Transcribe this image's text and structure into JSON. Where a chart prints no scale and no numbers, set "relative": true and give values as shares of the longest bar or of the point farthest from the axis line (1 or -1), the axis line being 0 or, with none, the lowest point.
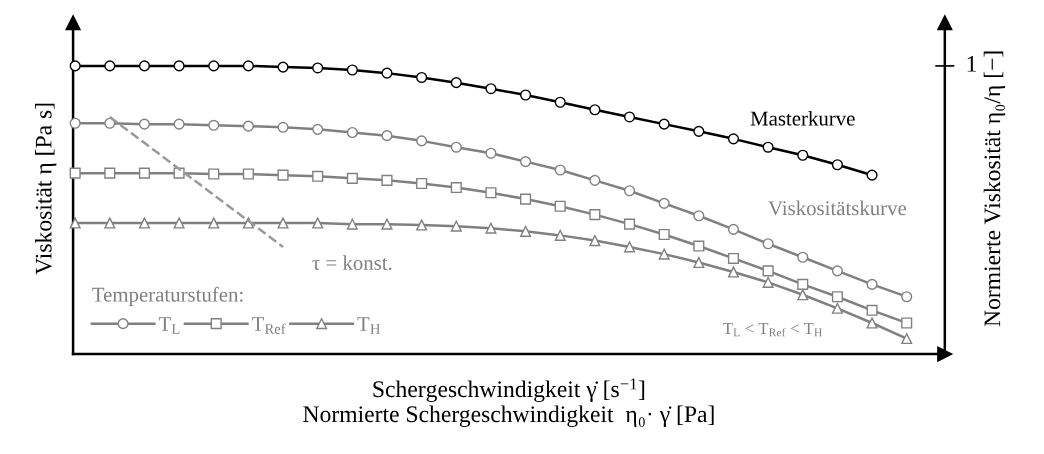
{
  "chart_data": {
    "type": "line",
    "relative": true,
    "xlabel": "Schergeschwindigkeit γ̇ [s$^{−1}$]\nNormierte Schergeschwindigkeit  η₀· γ̇ [Pa]",
    "ylabel": "Viskosität η [Pa s]",
    "y2label": "Normierte Viskosität η₀/η [−]",
    "legend_title": "Temperaturstufen:",
    "legend": "bottom left",
    "tick_labels": "y2",
    "grid": false,
    "categories": [
      null,
      null,
      null,
      null,
      null,
      null,
      null,
      null,
      null,
      null,
      null,
      null,
      null,
      null,
      null,
      null,
      null,
      null,
      null,
      null,
      null,
      null,
      null,
      null,
      null
    ],
    "series": [
      {
        "name": "Masterkurve",
        "color": "#000000",
        "marker": "circle",
        "values": [
          1.0,
          1.0,
          1.0,
          1.0,
          1.0,
          1.0,
          0.996,
          0.993,
          0.986,
          0.975,
          0.96,
          0.942,
          0.921,
          0.899,
          0.874,
          0.848,
          0.823,
          0.798,
          0.773,
          0.747,
          0.718,
          0.69,
          0.657,
          0.621,
          null
        ]
      },
      {
        "name": "T$_{L}$",
        "color": "#808080",
        "marker": "circle",
        "values": [
          0.801,
          0.801,
          0.798,
          0.798,
          0.794,
          0.791,
          0.787,
          0.78,
          0.769,
          0.758,
          0.74,
          0.718,
          0.697,
          0.668,
          0.639,
          0.603,
          0.567,
          0.523,
          0.48,
          0.433,
          0.383,
          0.336,
          0.289,
          0.242,
          0.199
        ]
      },
      {
        "name": "T$_{Ref}$",
        "color": "#808080",
        "marker": "square",
        "values": [
          0.628,
          0.628,
          0.628,
          0.628,
          0.625,
          0.625,
          0.621,
          0.617,
          0.61,
          0.603,
          0.592,
          0.578,
          0.56,
          0.538,
          0.513,
          0.484,
          0.451,
          0.415,
          0.375,
          0.332,
          0.289,
          0.242,
          0.199,
          0.152,
          0.108
        ]
      },
      {
        "name": "T$_{H}$",
        "color": "#808080",
        "marker": "triangle",
        "values": [
          0.455,
          0.455,
          0.455,
          0.455,
          0.455,
          0.455,
          0.455,
          0.455,
          0.451,
          0.451,
          0.448,
          0.444,
          0.437,
          0.426,
          0.412,
          0.394,
          0.372,
          0.347,
          0.318,
          0.285,
          0.249,
          0.206,
          0.159,
          0.108,
          0.054
        ]
      },
      {
        "type": "line",
        "color": "#999999",
        "line_style": "dashed",
        "marker": "none",
        "values": [
          null,
          0.823,
          null,
          null,
          null,
          null,
          0.372,
          null,
          null,
          null,
          null,
          null,
          null,
          null,
          null,
          null,
          null,
          null,
          null,
          null,
          null,
          null,
          null,
          null,
          null
        ]
      }
    ],
    "annotations": [
      "Viskositätskurve",
      "τ = konst.",
      "1",
      "T$_{L}$ < T$_{Ref}$ < T$_{H}$"
    ]
  }
}
